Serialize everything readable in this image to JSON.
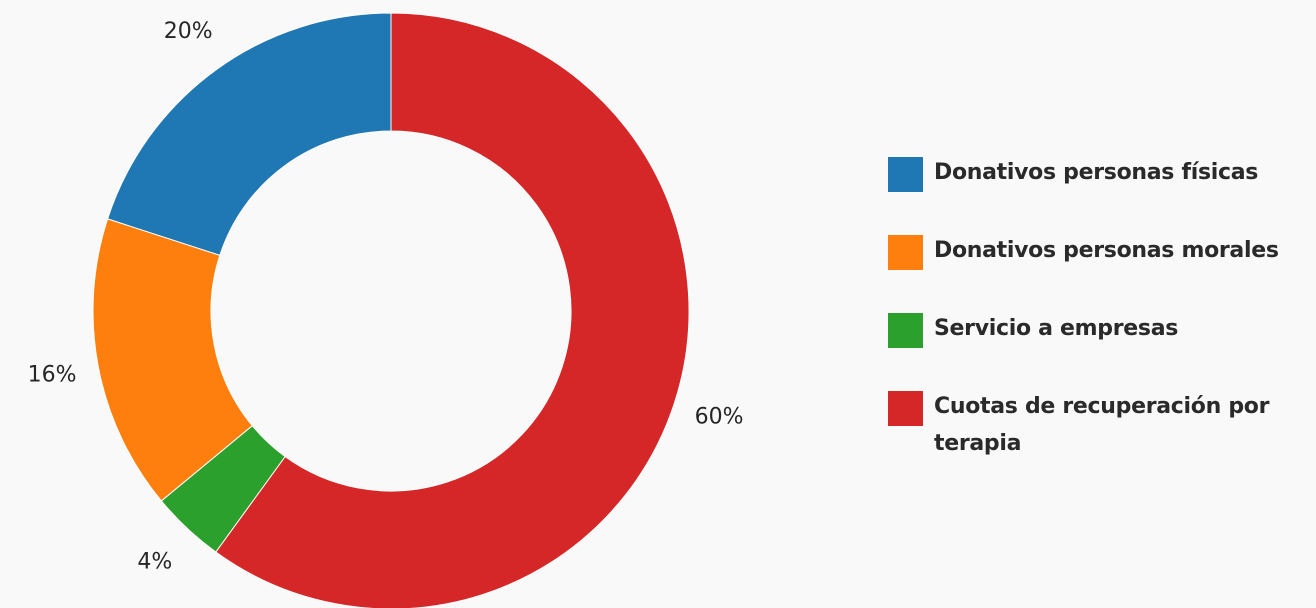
{
  "chart_data": {
    "type": "pie",
    "donut": true,
    "legend_position": "right",
    "slices": [
      {
        "label": "Donativos personas físicas",
        "value": 20,
        "percent_label": "20%",
        "color": "#1f77b4"
      },
      {
        "label": "Donativos personas morales",
        "value": 16,
        "percent_label": "16%",
        "color": "#ff7f0e"
      },
      {
        "label": "Servicio a empresas",
        "value": 4,
        "percent_label": "4%",
        "color": "#2ca02c"
      },
      {
        "label": "Cuotas de recuperación por terapia",
        "value": 60,
        "percent_label": "60%",
        "color": "#d62728"
      }
    ]
  }
}
